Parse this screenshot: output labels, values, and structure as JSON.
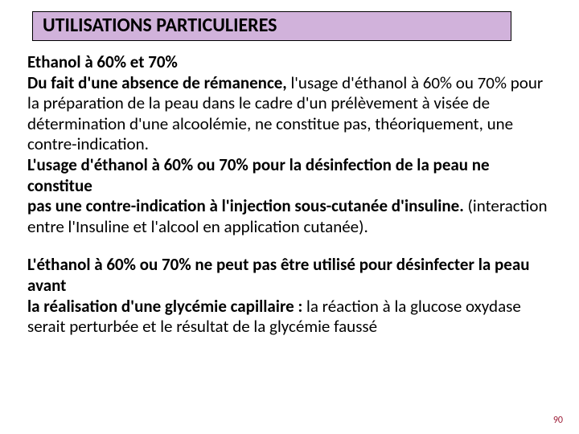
{
  "title": {
    "text": "UTILISATIONS PARTICULIERES",
    "background_color": "#d1b2db",
    "border_color": "#000000",
    "font_color": "#000000",
    "font_size_pt": 24,
    "font_weight": "bold"
  },
  "body": {
    "font_size_pt": 21,
    "p1": {
      "s1_b": "Ethanol à 60% et 70%",
      "s2_b": "Du fait d'une absence de rémanence,",
      "s2_r": " l'usage d'éthanol à 60% ou 70% pour la préparation de la peau dans le cadre d'un prélèvement à visée de détermination d'une alcoolémie, ne constitue pas, théoriquement, une contre-indication.",
      "s3_b": "L'usage d'éthanol à 60% ou 70% pour la désinfection de la peau ne constitue",
      "s4_b": "pas une contre-indication à l'injection sous-cutanée d'insuline.",
      "s4_r": " (interaction entre l'Insuline et l'alcool en application cutanée)."
    },
    "p2": {
      "s1_b": "L'éthanol à 60% ou 70% ne peut pas être utilisé pour désinfecter la peau avant",
      "s2_b": "la réalisation d'une glycémie capillaire :",
      "s2_r": " la réaction à la glucose oxydase serait perturbée et le résultat de la glycémie faussé"
    }
  },
  "page_number": {
    "text": "90",
    "color": "#9c1c36",
    "font_size_pt": 12
  },
  "colors": {
    "page_background": "#ffffff",
    "text_color": "#000000"
  }
}
